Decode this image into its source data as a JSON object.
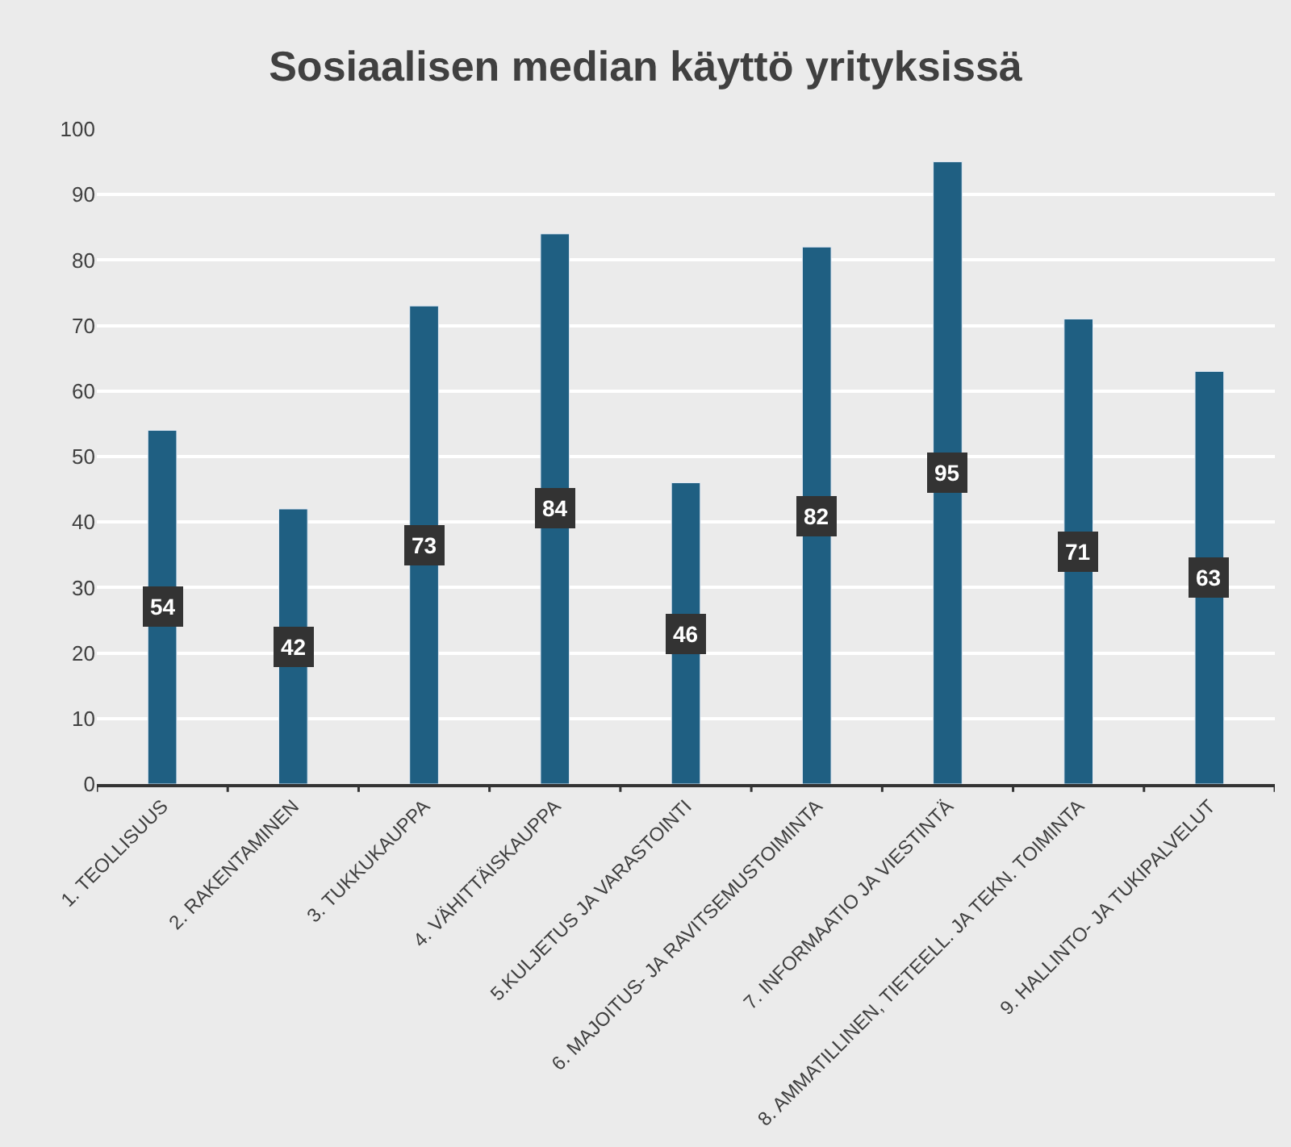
{
  "chart_data": {
    "type": "bar",
    "title": "Sosiaalisen median käyttö yrityksissä",
    "categories": [
      "1. TEOLLISUUS",
      "2. RAKENTAMINEN",
      "3. TUKKUKAUPPA",
      "4. VÄHITTÄISKAUPPA",
      "5.KULJETUS JA VARASTOINTI",
      "6. MAJOITUS- JA RAVITSEMUSTOIMINTA",
      "7. INFORMAATIO JA VIESTINTÄ",
      "8. AMMATILLINEN, TIETEELL. JA TEKN. TOIMINTA",
      "9. HALLINTO- JA TUKIPALVELUT"
    ],
    "values": [
      54,
      42,
      73,
      84,
      46,
      82,
      95,
      71,
      63
    ],
    "color": "#1f5f82",
    "ylim": [
      0,
      100
    ],
    "yticks": [
      0,
      10,
      20,
      30,
      40,
      50,
      60,
      70,
      80,
      90,
      100
    ],
    "grid": "y",
    "data_labels": true
  }
}
